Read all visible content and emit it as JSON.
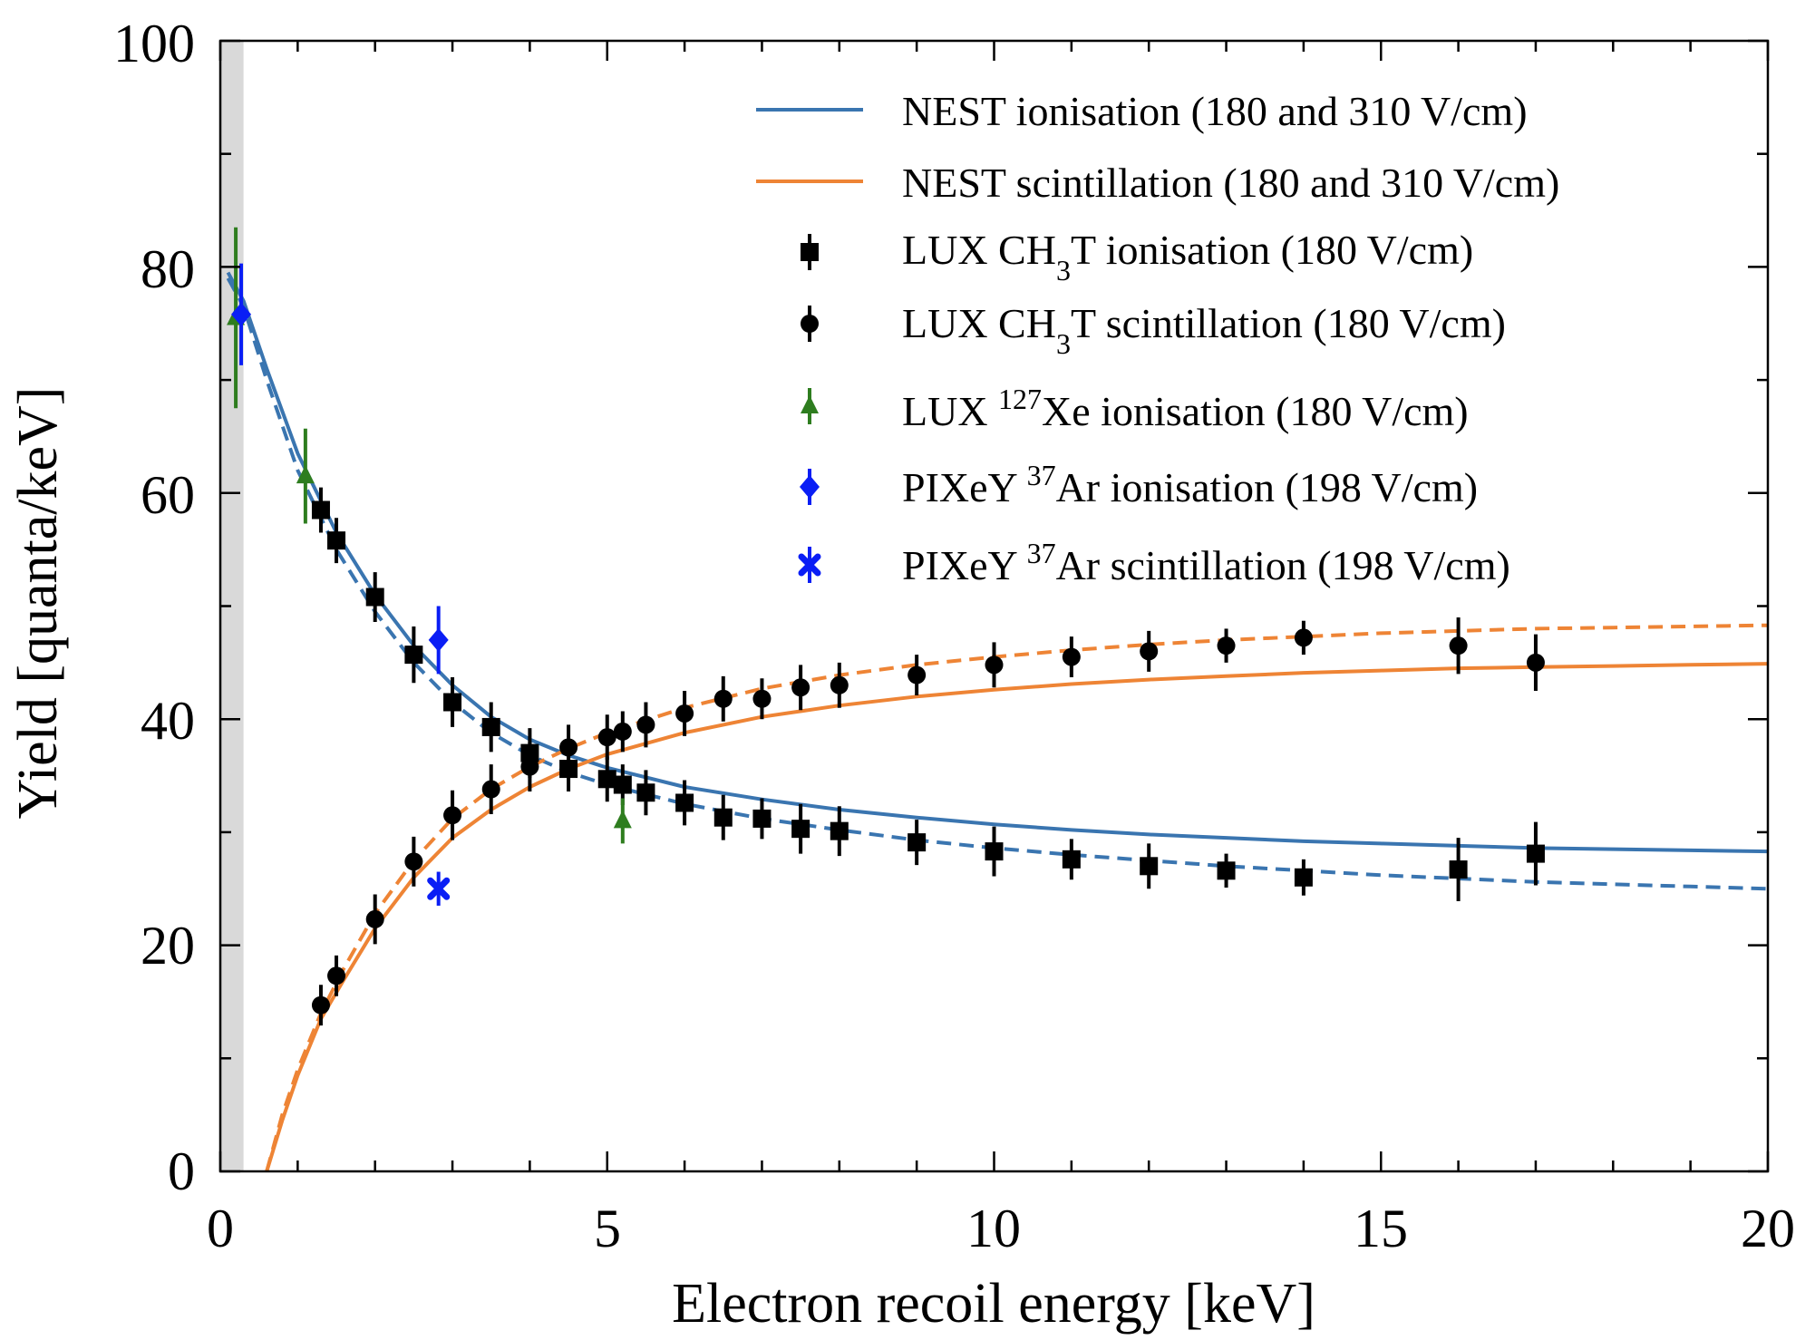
{
  "chart_data": {
    "type": "scatter",
    "xlabel": "Electron recoil energy [keV]",
    "ylabel": "Yield [quanta/keV]",
    "xlim": [
      0,
      20
    ],
    "ylim": [
      0,
      100
    ],
    "xticks": [
      0,
      5,
      10,
      15,
      20
    ],
    "yticks": [
      0,
      20,
      40,
      60,
      80,
      100
    ],
    "xtick_labels": [
      "0",
      "5",
      "10",
      "15",
      "20"
    ],
    "ytick_labels": [
      "0",
      "20",
      "40",
      "60",
      "80",
      "100"
    ],
    "grid": false,
    "legend_position": "top-right",
    "threshold_band": {
      "x": [
        0,
        0.3
      ],
      "color": "#d9d9d9"
    },
    "colors": {
      "blue": "#3a75b0",
      "orange": "#ee8435",
      "green": "#2e7d1f",
      "bright_blue": "#0a1ef5",
      "black": "#000000"
    },
    "legend": [
      {
        "label": "NEST ionisation (180 and 310 V/cm)",
        "marker": "line",
        "color": "#3a75b0"
      },
      {
        "label": "NEST scintillation (180 and 310 V/cm)",
        "marker": "line",
        "color": "#ee8435"
      },
      {
        "label": "LUX CH3T ionisation (180 V/cm)",
        "marker": "square",
        "color": "#000000"
      },
      {
        "label": "LUX CH3T scintillation (180 V/cm)",
        "marker": "circle",
        "color": "#000000"
      },
      {
        "label": "LUX 127Xe ionisation (180 V/cm)",
        "marker": "triangle",
        "color": "#2e7d1f"
      },
      {
        "label": "PIXeY 37Ar ionisation (198 V/cm)",
        "marker": "diamond",
        "color": "#0a1ef5"
      },
      {
        "label": "PIXeY 37Ar scintillation (198 V/cm)",
        "marker": "x",
        "color": "#0a1ef5"
      }
    ],
    "curves": [
      {
        "series": "NEST ionisation (180 and 310 V/cm)",
        "field": "180 V/cm",
        "style": "solid",
        "color": "#3a75b0",
        "x": [
          0.1,
          0.3,
          0.6,
          1.0,
          1.5,
          2.0,
          2.5,
          3.0,
          3.5,
          4.0,
          4.5,
          5.0,
          6.0,
          7.0,
          8.0,
          9.0,
          10.0,
          11.0,
          12.0,
          13.0,
          14.0,
          15.0,
          16.0,
          17.0,
          18.0,
          19.0,
          20.0
        ],
        "y": [
          79.5,
          77.0,
          71.0,
          63.5,
          56.5,
          51.0,
          46.5,
          43.0,
          40.2,
          38.2,
          36.8,
          35.7,
          34.0,
          32.9,
          32.0,
          31.3,
          30.7,
          30.2,
          29.8,
          29.5,
          29.2,
          29.0,
          28.8,
          28.6,
          28.5,
          28.4,
          28.3
        ]
      },
      {
        "series": "NEST ionisation (180 and 310 V/cm)",
        "field": "310 V/cm",
        "style": "dashed",
        "color": "#3a75b0",
        "x": [
          0.1,
          0.3,
          0.6,
          1.0,
          1.5,
          2.0,
          2.5,
          3.0,
          3.5,
          4.0,
          4.5,
          5.0,
          6.0,
          7.0,
          8.0,
          9.0,
          10.0,
          11.0,
          12.0,
          13.0,
          14.0,
          15.0,
          16.0,
          17.0,
          18.0,
          19.0,
          20.0
        ],
        "y": [
          79.0,
          76.5,
          70.0,
          62.0,
          55.0,
          49.5,
          45.0,
          41.5,
          38.8,
          36.8,
          35.3,
          34.2,
          32.5,
          31.2,
          30.2,
          29.3,
          28.6,
          28.0,
          27.5,
          27.0,
          26.6,
          26.2,
          25.9,
          25.6,
          25.4,
          25.2,
          25.0
        ]
      },
      {
        "series": "NEST scintillation (180 and 310 V/cm)",
        "field": "180 V/cm",
        "style": "solid",
        "color": "#ee8435",
        "x": [
          0.6,
          0.8,
          1.0,
          1.3,
          1.6,
          2.0,
          2.5,
          3.0,
          3.5,
          4.0,
          4.5,
          5.0,
          6.0,
          7.0,
          8.0,
          9.0,
          10.0,
          11.0,
          12.0,
          13.0,
          14.0,
          15.0,
          16.0,
          17.0,
          18.0,
          19.0,
          20.0
        ],
        "y": [
          0,
          4.5,
          8.5,
          13.5,
          17.0,
          21.5,
          26.0,
          29.5,
          32.0,
          34.0,
          35.6,
          36.9,
          38.8,
          40.2,
          41.2,
          42.0,
          42.6,
          43.1,
          43.5,
          43.8,
          44.1,
          44.3,
          44.5,
          44.6,
          44.7,
          44.8,
          44.9
        ]
      },
      {
        "series": "NEST scintillation (180 and 310 V/cm)",
        "field": "310 V/cm",
        "style": "dashed",
        "color": "#ee8435",
        "x": [
          0.6,
          0.8,
          1.0,
          1.3,
          1.6,
          2.0,
          2.5,
          3.0,
          3.5,
          4.0,
          4.5,
          5.0,
          6.0,
          7.0,
          8.0,
          9.0,
          10.0,
          11.0,
          12.0,
          13.0,
          14.0,
          15.0,
          16.0,
          17.0,
          18.0,
          19.0,
          20.0
        ],
        "y": [
          0,
          5.0,
          9.0,
          14.0,
          18.0,
          22.8,
          27.5,
          31.2,
          33.8,
          35.8,
          37.4,
          38.8,
          41.0,
          42.7,
          43.9,
          44.8,
          45.5,
          46.1,
          46.6,
          47.0,
          47.3,
          47.6,
          47.8,
          48.0,
          48.1,
          48.2,
          48.3
        ]
      }
    ],
    "series": [
      {
        "name": "LUX CH3T ionisation (180 V/cm)",
        "marker": "square",
        "color": "#000000",
        "points": [
          {
            "x": 1.3,
            "y": 58.5,
            "err": 2.0
          },
          {
            "x": 1.5,
            "y": 55.8,
            "err": 2.0
          },
          {
            "x": 2.0,
            "y": 50.8,
            "err": 2.2
          },
          {
            "x": 2.5,
            "y": 45.7,
            "err": 2.5
          },
          {
            "x": 3.0,
            "y": 41.5,
            "err": 2.2
          },
          {
            "x": 3.5,
            "y": 39.3,
            "err": 2.2
          },
          {
            "x": 4.0,
            "y": 37.0,
            "err": 2.2
          },
          {
            "x": 4.5,
            "y": 35.6,
            "err": 2.0
          },
          {
            "x": 5.0,
            "y": 34.7,
            "err": 2.0
          },
          {
            "x": 5.2,
            "y": 34.2,
            "err": 1.8
          },
          {
            "x": 5.5,
            "y": 33.5,
            "err": 2.0
          },
          {
            "x": 6.0,
            "y": 32.6,
            "err": 2.0
          },
          {
            "x": 6.5,
            "y": 31.3,
            "err": 2.0
          },
          {
            "x": 7.0,
            "y": 31.2,
            "err": 1.8
          },
          {
            "x": 7.5,
            "y": 30.3,
            "err": 2.2
          },
          {
            "x": 8.0,
            "y": 30.1,
            "err": 2.2
          },
          {
            "x": 9.0,
            "y": 29.1,
            "err": 2.0
          },
          {
            "x": 10.0,
            "y": 28.3,
            "err": 2.2
          },
          {
            "x": 11.0,
            "y": 27.6,
            "err": 1.8
          },
          {
            "x": 12.0,
            "y": 27.0,
            "err": 2.0
          },
          {
            "x": 13.0,
            "y": 26.6,
            "err": 1.5
          },
          {
            "x": 14.0,
            "y": 26.0,
            "err": 1.6
          },
          {
            "x": 16.0,
            "y": 26.7,
            "err": 2.8
          },
          {
            "x": 17.0,
            "y": 28.1,
            "err": 2.8
          }
        ]
      },
      {
        "name": "LUX CH3T scintillation (180 V/cm)",
        "marker": "circle",
        "color": "#000000",
        "points": [
          {
            "x": 1.3,
            "y": 14.7,
            "err": 1.8
          },
          {
            "x": 1.5,
            "y": 17.3,
            "err": 1.8
          },
          {
            "x": 2.0,
            "y": 22.3,
            "err": 2.2
          },
          {
            "x": 2.5,
            "y": 27.4,
            "err": 2.2
          },
          {
            "x": 3.0,
            "y": 31.5,
            "err": 2.2
          },
          {
            "x": 3.5,
            "y": 33.8,
            "err": 2.2
          },
          {
            "x": 4.0,
            "y": 35.8,
            "err": 2.2
          },
          {
            "x": 4.5,
            "y": 37.5,
            "err": 2.0
          },
          {
            "x": 5.0,
            "y": 38.4,
            "err": 2.0
          },
          {
            "x": 5.2,
            "y": 38.9,
            "err": 1.8
          },
          {
            "x": 5.5,
            "y": 39.5,
            "err": 2.0
          },
          {
            "x": 6.0,
            "y": 40.5,
            "err": 2.0
          },
          {
            "x": 6.5,
            "y": 41.8,
            "err": 2.0
          },
          {
            "x": 7.0,
            "y": 41.8,
            "err": 1.8
          },
          {
            "x": 7.5,
            "y": 42.8,
            "err": 2.0
          },
          {
            "x": 8.0,
            "y": 43.0,
            "err": 2.0
          },
          {
            "x": 9.0,
            "y": 43.9,
            "err": 1.8
          },
          {
            "x": 10.0,
            "y": 44.8,
            "err": 2.0
          },
          {
            "x": 11.0,
            "y": 45.5,
            "err": 1.8
          },
          {
            "x": 12.0,
            "y": 46.0,
            "err": 1.8
          },
          {
            "x": 13.0,
            "y": 46.5,
            "err": 1.5
          },
          {
            "x": 14.0,
            "y": 47.2,
            "err": 1.5
          },
          {
            "x": 16.0,
            "y": 46.5,
            "err": 2.5
          },
          {
            "x": 17.0,
            "y": 45.0,
            "err": 2.5
          }
        ]
      },
      {
        "name": "LUX 127Xe ionisation (180 V/cm)",
        "marker": "triangle",
        "color": "#2e7d1f",
        "points": [
          {
            "x": 0.2,
            "y": 75.5,
            "err": 8.0
          },
          {
            "x": 1.1,
            "y": 61.5,
            "err": 4.2
          },
          {
            "x": 5.2,
            "y": 31.0,
            "err": 2.0
          }
        ]
      },
      {
        "name": "PIXeY 37Ar ionisation (198 V/cm)",
        "marker": "diamond",
        "color": "#0a1ef5",
        "points": [
          {
            "x": 0.27,
            "y": 75.8,
            "err": 4.5
          },
          {
            "x": 2.82,
            "y": 47.0,
            "err": 3.0
          }
        ]
      },
      {
        "name": "PIXeY 37Ar scintillation (198 V/cm)",
        "marker": "x",
        "color": "#0a1ef5",
        "points": [
          {
            "x": 2.82,
            "y": 25.0,
            "err": 1.5
          }
        ]
      }
    ]
  }
}
